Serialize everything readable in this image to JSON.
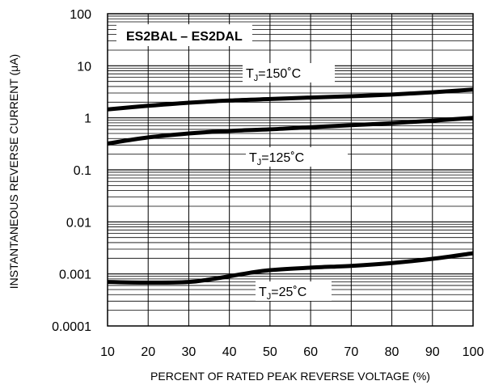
{
  "chart_data": {
    "type": "line",
    "title": "ES2BAL – ES2DAL",
    "xlabel": "PERCENT OF RATED PEAK REVERSE VOLTAGE (%)",
    "ylabel": "INSTANTANEOUS REVERSE CURRENT (μA)",
    "xlim": [
      10,
      100
    ],
    "ylim": [
      0.0001,
      100
    ],
    "y_scale": "log",
    "grid": true,
    "x_ticks": [
      "10",
      "20",
      "30",
      "40",
      "50",
      "60",
      "70",
      "80",
      "90",
      "100"
    ],
    "y_ticks": [
      "0.0001",
      "0.001",
      "0.01",
      "0.1",
      "1",
      "10",
      "100"
    ],
    "series": [
      {
        "label_main": "T",
        "label_sub": "J",
        "label_rest": "=150˚C",
        "x": [
          10,
          20,
          30,
          40,
          50,
          60,
          70,
          80,
          90,
          100
        ],
        "y": [
          1.45,
          1.7,
          1.95,
          2.15,
          2.3,
          2.45,
          2.6,
          2.8,
          3.1,
          3.5
        ]
      },
      {
        "label_main": "T",
        "label_sub": "J",
        "label_rest": "=125˚C",
        "x": [
          10,
          20,
          30,
          40,
          50,
          60,
          70,
          80,
          90,
          100
        ],
        "y": [
          0.32,
          0.42,
          0.5,
          0.56,
          0.6,
          0.66,
          0.72,
          0.79,
          0.88,
          1.0
        ]
      },
      {
        "label_main": "T",
        "label_sub": "J",
        "label_rest": "=25˚C",
        "x": [
          10,
          20,
          30,
          35,
          40,
          45,
          50,
          60,
          70,
          80,
          90,
          100
        ],
        "y": [
          0.0007,
          0.00068,
          0.0007,
          0.00078,
          0.0009,
          0.00105,
          0.00118,
          0.00132,
          0.00143,
          0.00162,
          0.00195,
          0.0025
        ]
      }
    ]
  }
}
